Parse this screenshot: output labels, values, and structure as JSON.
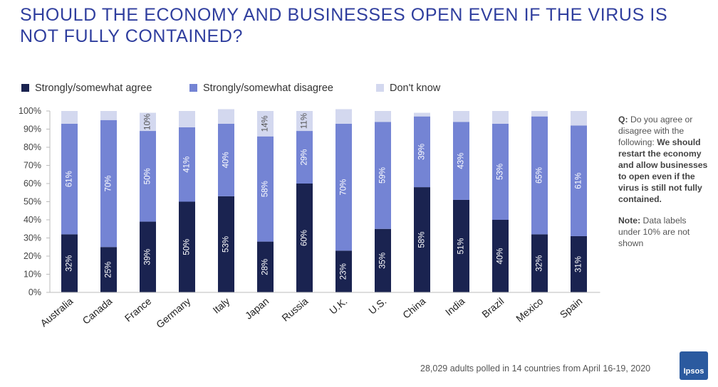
{
  "title": "SHOULD THE ECONOMY AND BUSINESSES OPEN EVEN IF THE VIRUS IS NOT FULLY CONTAINED?",
  "side_note": {
    "q_label": "Q:",
    "q_text": "Do you agree or disagree with the following:",
    "q_statement": "We should restart the economy and allow businesses to open even if the virus is still not fully contained.",
    "note_label": "Note:",
    "note_text": "Data labels under 10% are not shown"
  },
  "footnote": "28,029 adults polled in 14 countries from April 16-19, 2020",
  "logo_text": "Ipsos",
  "colors": {
    "agree": "#1a2350",
    "disagree": "#7484d4",
    "dont_know": "#d3d8ef",
    "title": "#2f3e9e"
  },
  "chart_data": {
    "type": "bar",
    "stacked": true,
    "title": "SHOULD THE ECONOMY AND BUSINESSES OPEN EVEN IF THE VIRUS IS NOT FULLY CONTAINED?",
    "categories": [
      "Australia",
      "Canada",
      "France",
      "Germany",
      "Italy",
      "Japan",
      "Russia",
      "U.K.",
      "U.S.",
      "China",
      "India",
      "Brazil",
      "Mexico",
      "Spain"
    ],
    "series": [
      {
        "name": "Strongly/somewhat agree",
        "values": [
          32,
          25,
          39,
          50,
          53,
          28,
          60,
          23,
          35,
          58,
          51,
          40,
          32,
          31
        ],
        "labels": [
          "32%",
          "25%",
          "39%",
          "50%",
          "53%",
          "28%",
          "60%",
          "23%",
          "35%",
          "58%",
          "51%",
          "40%",
          "32%",
          "31%"
        ]
      },
      {
        "name": "Strongly/somewhat disagree",
        "values": [
          61,
          70,
          50,
          41,
          40,
          58,
          29,
          70,
          59,
          39,
          43,
          53,
          65,
          61
        ],
        "labels": [
          "61%",
          "70%",
          "50%",
          "41%",
          "40%",
          "58%",
          "29%",
          "70%",
          "59%",
          "39%",
          "43%",
          "53%",
          "65%",
          "61%"
        ]
      },
      {
        "name": "Don't know",
        "values": [
          7,
          5,
          10,
          9,
          8,
          14,
          11,
          8,
          6,
          2,
          6,
          7,
          3,
          8
        ],
        "labels": [
          "",
          "",
          "10%",
          "",
          "",
          "14%",
          "11%",
          "",
          "",
          "",
          "",
          "",
          "",
          ""
        ]
      }
    ],
    "ylim": [
      0,
      100
    ],
    "yticks": [
      "0%",
      "10%",
      "20%",
      "30%",
      "40%",
      "50%",
      "60%",
      "70%",
      "80%",
      "90%",
      "100%"
    ],
    "grid": false,
    "legend_position": "top-left"
  }
}
